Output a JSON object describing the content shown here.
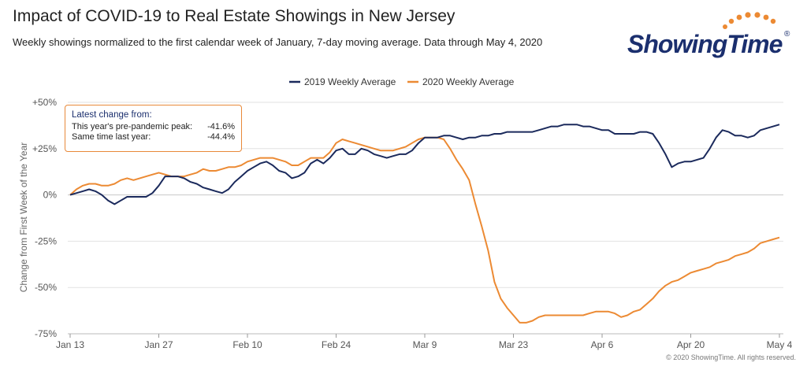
{
  "header": {
    "title": "Impact of COVID-19 to Real Estate Showings in New Jersey",
    "subtitle": "Weekly showings normalized to the first calendar week of January, 7-day moving average. Data through May 4, 2020"
  },
  "logo": {
    "text": "ShowingTime",
    "mark": "®"
  },
  "annotation": {
    "title": "Latest change from:",
    "rows": [
      {
        "label": "This year's pre-pandemic peak:",
        "value": "-41.6%"
      },
      {
        "label": "Same time last year:",
        "value": "-44.4%"
      }
    ]
  },
  "footer": {
    "copyright": "© 2020 ShowingTime. All rights reserved."
  },
  "colors": {
    "series_2019": "#1b2a5c",
    "series_2020": "#ec8a33",
    "grid": "#e2e2e2",
    "zero_line": "#c8c8c8",
    "annotation_border": "#e8893a"
  },
  "chart_data": {
    "type": "line",
    "xlabel": "",
    "ylabel": "Change from First Week of the Year",
    "x_ticks": [
      "Jan 13",
      "Jan 27",
      "Feb 10",
      "Feb 24",
      "Mar 9",
      "Mar 23",
      "Apr 6",
      "Apr 20",
      "May 4"
    ],
    "x_range": [
      "Jan 13",
      "May 4"
    ],
    "y_ticks": [
      "+50%",
      "+25%",
      "0%",
      "-25%",
      "-50%",
      "-75%"
    ],
    "ylim": [
      -75,
      50
    ],
    "grid": true,
    "legend_position": "top-center",
    "series": [
      {
        "name": "2019 Weekly Average",
        "color": "#1b2a5c",
        "points": [
          [
            0,
            0
          ],
          [
            2,
            2
          ],
          [
            3,
            3
          ],
          [
            4,
            2
          ],
          [
            5,
            0
          ],
          [
            6,
            -3
          ],
          [
            7,
            -5
          ],
          [
            8,
            -3
          ],
          [
            9,
            -1
          ],
          [
            10,
            -1
          ],
          [
            11,
            -1
          ],
          [
            12,
            -1
          ],
          [
            13,
            1
          ],
          [
            14,
            5
          ],
          [
            15,
            10
          ],
          [
            16,
            10
          ],
          [
            17,
            10
          ],
          [
            18,
            9
          ],
          [
            19,
            7
          ],
          [
            20,
            6
          ],
          [
            21,
            4
          ],
          [
            22,
            3
          ],
          [
            23,
            2
          ],
          [
            24,
            1
          ],
          [
            25,
            3
          ],
          [
            26,
            7
          ],
          [
            27,
            10
          ],
          [
            28,
            13
          ],
          [
            29,
            15
          ],
          [
            30,
            17
          ],
          [
            31,
            18
          ],
          [
            32,
            16
          ],
          [
            33,
            13
          ],
          [
            34,
            12
          ],
          [
            35,
            9
          ],
          [
            36,
            10
          ],
          [
            37,
            12
          ],
          [
            38,
            17
          ],
          [
            39,
            19
          ],
          [
            40,
            17
          ],
          [
            41,
            20
          ],
          [
            42,
            24
          ],
          [
            43,
            25
          ],
          [
            44,
            22
          ],
          [
            45,
            22
          ],
          [
            46,
            25
          ],
          [
            47,
            24
          ],
          [
            48,
            22
          ],
          [
            49,
            21
          ],
          [
            50,
            20
          ],
          [
            51,
            21
          ],
          [
            52,
            22
          ],
          [
            53,
            22
          ],
          [
            54,
            24
          ],
          [
            55,
            28
          ],
          [
            56,
            31
          ],
          [
            57,
            31
          ],
          [
            58,
            31
          ],
          [
            59,
            32
          ],
          [
            60,
            32
          ],
          [
            61,
            31
          ],
          [
            62,
            30
          ],
          [
            63,
            31
          ],
          [
            64,
            31
          ],
          [
            65,
            32
          ],
          [
            66,
            32
          ],
          [
            67,
            33
          ],
          [
            68,
            33
          ],
          [
            69,
            34
          ],
          [
            70,
            34
          ],
          [
            71,
            34
          ],
          [
            72,
            34
          ],
          [
            73,
            34
          ],
          [
            74,
            35
          ],
          [
            75,
            36
          ],
          [
            76,
            37
          ],
          [
            77,
            37
          ],
          [
            78,
            38
          ],
          [
            79,
            38
          ],
          [
            80,
            38
          ],
          [
            81,
            37
          ],
          [
            82,
            37
          ],
          [
            83,
            36
          ],
          [
            84,
            35
          ],
          [
            85,
            35
          ],
          [
            86,
            33
          ],
          [
            87,
            33
          ],
          [
            88,
            33
          ],
          [
            89,
            33
          ],
          [
            90,
            34
          ],
          [
            91,
            34
          ],
          [
            92,
            33
          ],
          [
            93,
            28
          ],
          [
            94,
            22
          ],
          [
            95,
            15
          ],
          [
            96,
            17
          ],
          [
            97,
            18
          ],
          [
            98,
            18
          ],
          [
            99,
            19
          ],
          [
            100,
            20
          ],
          [
            101,
            25
          ],
          [
            102,
            31
          ],
          [
            103,
            35
          ],
          [
            104,
            34
          ],
          [
            105,
            32
          ],
          [
            106,
            32
          ],
          [
            107,
            31
          ],
          [
            108,
            32
          ],
          [
            109,
            35
          ],
          [
            110,
            36
          ],
          [
            111,
            37
          ],
          [
            112,
            38
          ]
        ]
      },
      {
        "name": "2020 Weekly Average",
        "color": "#ec8a33",
        "points": [
          [
            0,
            0
          ],
          [
            1,
            3
          ],
          [
            2,
            5
          ],
          [
            3,
            6
          ],
          [
            4,
            6
          ],
          [
            5,
            5
          ],
          [
            6,
            5
          ],
          [
            7,
            6
          ],
          [
            8,
            8
          ],
          [
            9,
            9
          ],
          [
            10,
            8
          ],
          [
            11,
            9
          ],
          [
            12,
            10
          ],
          [
            13,
            11
          ],
          [
            14,
            12
          ],
          [
            15,
            11
          ],
          [
            16,
            10
          ],
          [
            17,
            10
          ],
          [
            18,
            10
          ],
          [
            19,
            11
          ],
          [
            20,
            12
          ],
          [
            21,
            14
          ],
          [
            22,
            13
          ],
          [
            23,
            13
          ],
          [
            24,
            14
          ],
          [
            25,
            15
          ],
          [
            26,
            15
          ],
          [
            27,
            16
          ],
          [
            28,
            18
          ],
          [
            29,
            19
          ],
          [
            30,
            20
          ],
          [
            31,
            20
          ],
          [
            32,
            20
          ],
          [
            33,
            19
          ],
          [
            34,
            18
          ],
          [
            35,
            16
          ],
          [
            36,
            16
          ],
          [
            37,
            18
          ],
          [
            38,
            20
          ],
          [
            39,
            20
          ],
          [
            40,
            20
          ],
          [
            41,
            23
          ],
          [
            42,
            28
          ],
          [
            43,
            30
          ],
          [
            44,
            29
          ],
          [
            45,
            28
          ],
          [
            46,
            27
          ],
          [
            47,
            26
          ],
          [
            48,
            25
          ],
          [
            49,
            24
          ],
          [
            50,
            24
          ],
          [
            51,
            24
          ],
          [
            52,
            25
          ],
          [
            53,
            26
          ],
          [
            54,
            28
          ],
          [
            55,
            30
          ],
          [
            56,
            31
          ],
          [
            57,
            31
          ],
          [
            58,
            31
          ],
          [
            59,
            30
          ],
          [
            60,
            25
          ],
          [
            61,
            19
          ],
          [
            62,
            14
          ],
          [
            63,
            8
          ],
          [
            64,
            -5
          ],
          [
            65,
            -17
          ],
          [
            66,
            -30
          ],
          [
            67,
            -47
          ],
          [
            68,
            -56
          ],
          [
            69,
            -61
          ],
          [
            70,
            -65
          ],
          [
            71,
            -69
          ],
          [
            72,
            -69
          ],
          [
            73,
            -68
          ],
          [
            74,
            -66
          ],
          [
            75,
            -65
          ],
          [
            76,
            -65
          ],
          [
            77,
            -65
          ],
          [
            78,
            -65
          ],
          [
            79,
            -65
          ],
          [
            80,
            -65
          ],
          [
            81,
            -65
          ],
          [
            82,
            -64
          ],
          [
            83,
            -63
          ],
          [
            84,
            -63
          ],
          [
            85,
            -63
          ],
          [
            86,
            -64
          ],
          [
            87,
            -66
          ],
          [
            88,
            -65
          ],
          [
            89,
            -63
          ],
          [
            90,
            -62
          ],
          [
            91,
            -59
          ],
          [
            92,
            -56
          ],
          [
            93,
            -52
          ],
          [
            94,
            -49
          ],
          [
            95,
            -47
          ],
          [
            96,
            -46
          ],
          [
            97,
            -44
          ],
          [
            98,
            -42
          ],
          [
            99,
            -41
          ],
          [
            100,
            -40
          ],
          [
            101,
            -39
          ],
          [
            102,
            -37
          ],
          [
            103,
            -36
          ],
          [
            104,
            -35
          ],
          [
            105,
            -33
          ],
          [
            106,
            -32
          ],
          [
            107,
            -31
          ],
          [
            108,
            -29
          ],
          [
            109,
            -26
          ],
          [
            110,
            -25
          ],
          [
            111,
            -24
          ],
          [
            112,
            -23
          ]
        ]
      }
    ]
  }
}
